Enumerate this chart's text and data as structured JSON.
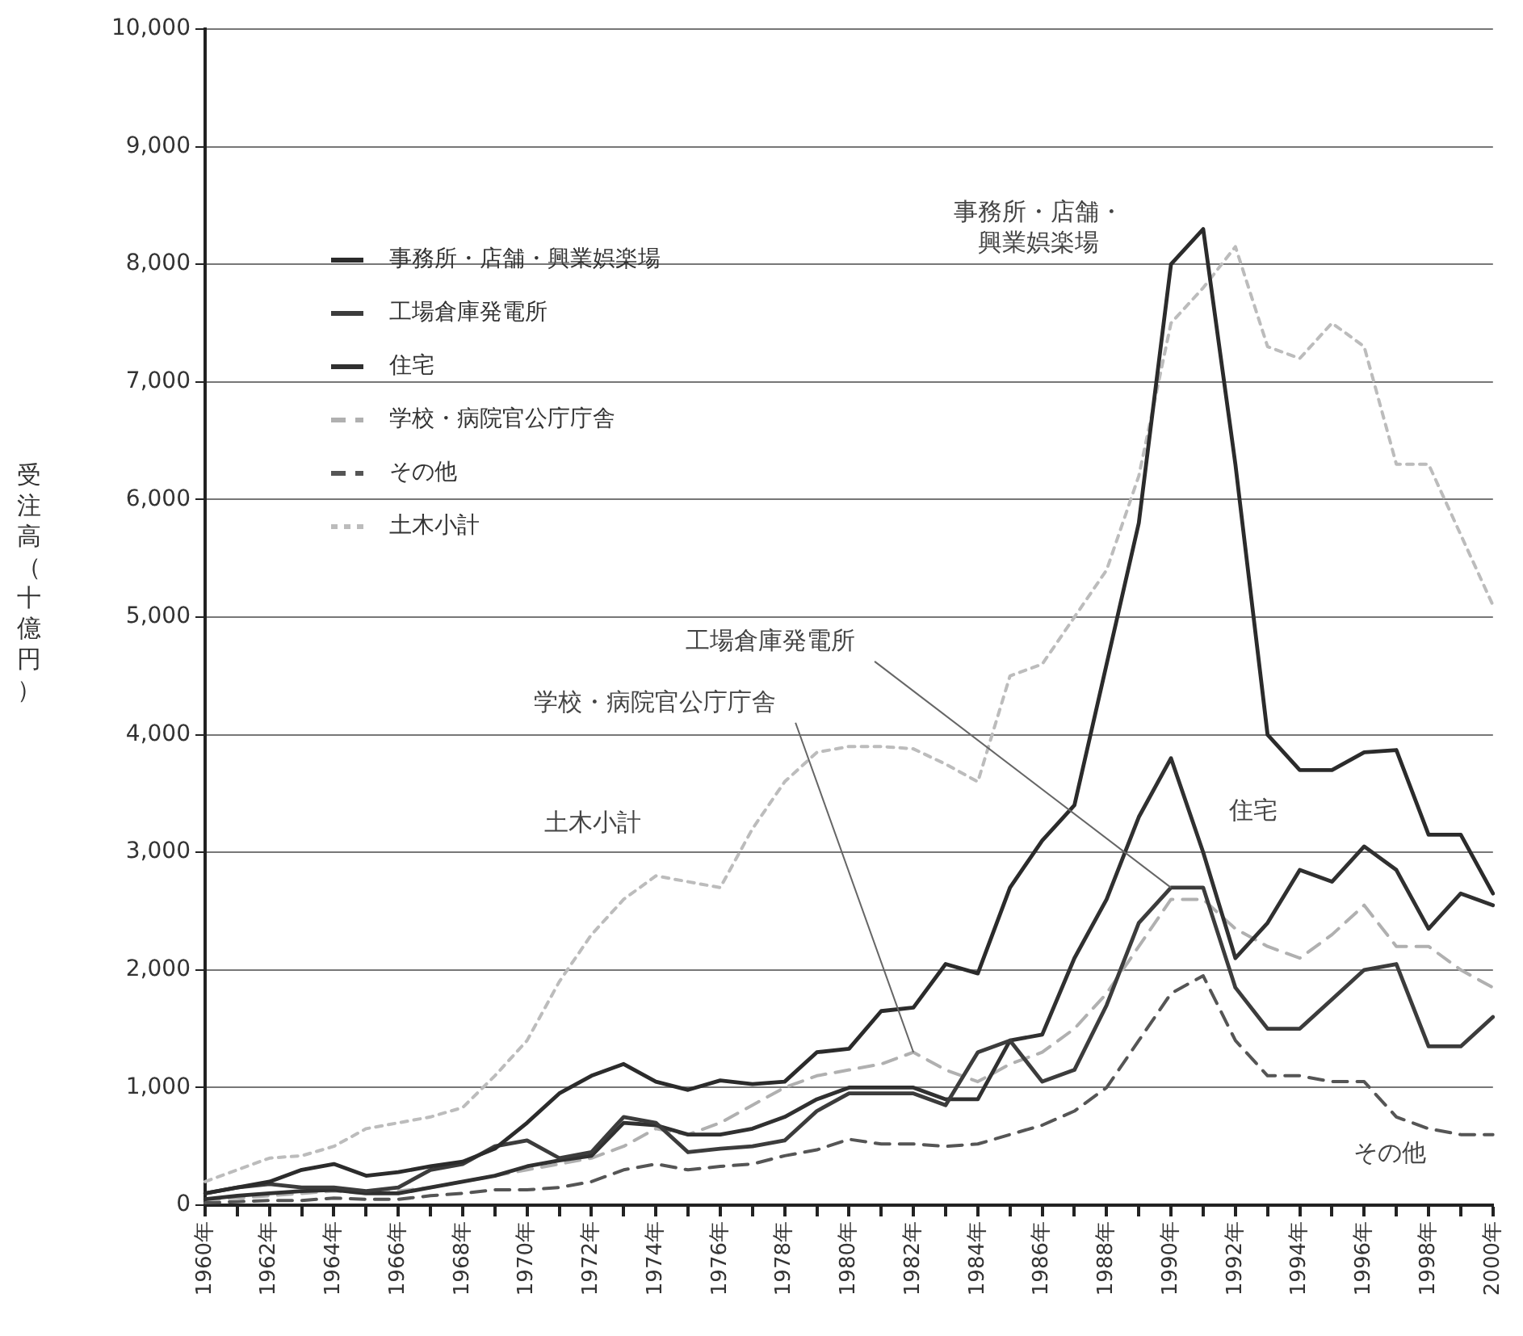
{
  "chart_data": {
    "type": "line",
    "ylabel": "受注高（十億円）",
    "categories": [
      "1960年",
      null,
      "1962年",
      null,
      "1964年",
      null,
      "1966年",
      null,
      "1968年",
      null,
      "1970年",
      null,
      "1972年",
      null,
      "1974年",
      null,
      "1976年",
      null,
      "1978年",
      null,
      "1980年",
      null,
      "1982年",
      null,
      "1984年",
      null,
      "1986年",
      null,
      "1988年",
      null,
      "1990年",
      null,
      "1992年",
      null,
      "1994年",
      null,
      "1996年",
      null,
      "1998年",
      null,
      "2000年"
    ],
    "ylim": [
      0,
      10000
    ],
    "yticks": [
      0,
      {
        "value": 1000,
        "label": "1,000"
      },
      {
        "value": 2000,
        "label": "2,000"
      },
      {
        "value": 3000,
        "label": "3,000"
      },
      {
        "value": 4000,
        "label": "4,000"
      },
      {
        "value": 5000,
        "label": "5,000"
      },
      {
        "value": 6000,
        "label": "6,000"
      },
      {
        "value": 7000,
        "label": "7,000"
      },
      {
        "value": 8000,
        "label": "8,000"
      },
      {
        "value": 9000,
        "label": "9,000"
      },
      {
        "value": 10000,
        "label": "10,000"
      }
    ],
    "grid": "y",
    "legend": "top left",
    "marker": "none",
    "series": [
      {
        "name": "事務所・店舗・興業娯楽場",
        "color": "#2b2b2b",
        "line_style": "solid",
        "values": [
          100,
          150,
          200,
          300,
          350,
          250,
          280,
          330,
          370,
          480,
          700,
          950,
          1100,
          1200,
          1050,
          980,
          1060,
          1030,
          1050,
          1300,
          1330,
          1650,
          1680,
          2050,
          1970,
          2700,
          3100,
          3400,
          4600,
          5800,
          8000,
          8300,
          6300,
          4000,
          3700,
          3700,
          3850,
          3870,
          3150,
          3150,
          2650
        ]
      },
      {
        "name": "工場倉庫発電所",
        "color": "#3c3c3c",
        "line_style": "solid",
        "values": [
          100,
          150,
          180,
          150,
          150,
          120,
          150,
          300,
          350,
          500,
          550,
          400,
          450,
          750,
          700,
          450,
          480,
          500,
          550,
          800,
          950,
          950,
          950,
          850,
          1300,
          1400,
          1050,
          1150,
          1700,
          2400,
          2700,
          2700,
          1850,
          1500,
          1500,
          1750,
          2000,
          2050,
          1350,
          1350,
          1600
        ]
      },
      {
        "name": "住宅",
        "color": "#303030",
        "line_style": "solid",
        "values": [
          50,
          80,
          100,
          120,
          130,
          100,
          100,
          150,
          200,
          250,
          330,
          380,
          420,
          700,
          680,
          600,
          600,
          650,
          750,
          900,
          1000,
          1000,
          1000,
          900,
          900,
          1400,
          1450,
          2100,
          2600,
          3300,
          3800,
          3000,
          2100,
          2400,
          2850,
          2750,
          3050,
          2850,
          2350,
          2650,
          2550
        ]
      },
      {
        "name": "学校・病院官公庁庁舎",
        "color": "#b0b0b0",
        "line_style": "dashed",
        "values": [
          50,
          60,
          80,
          100,
          120,
          100,
          120,
          150,
          200,
          250,
          300,
          350,
          400,
          500,
          650,
          600,
          700,
          850,
          1000,
          1100,
          1150,
          1200,
          1300,
          1150,
          1050,
          1200,
          1300,
          1500,
          1800,
          2200,
          2600,
          2600,
          2350,
          2200,
          2100,
          2300,
          2550,
          2200,
          2200,
          2000,
          1850
        ]
      },
      {
        "name": "その他",
        "color": "#555555",
        "line_style": "dashed",
        "values": [
          20,
          30,
          40,
          40,
          60,
          50,
          50,
          80,
          100,
          130,
          130,
          150,
          200,
          300,
          350,
          300,
          330,
          350,
          420,
          470,
          560,
          520,
          520,
          500,
          520,
          600,
          680,
          800,
          1000,
          1400,
          1800,
          1950,
          1400,
          1100,
          1100,
          1050,
          1050,
          750,
          650,
          600,
          600
        ]
      },
      {
        "name": "土木小計",
        "color": "#bcbcbc",
        "line_style": "dotted",
        "values": [
          200,
          300,
          400,
          420,
          500,
          650,
          700,
          750,
          830,
          1100,
          1400,
          1900,
          2300,
          2600,
          2800,
          2750,
          2700,
          3200,
          3600,
          3850,
          3900,
          3900,
          3880,
          3750,
          3600,
          4500,
          4600,
          5000,
          5400,
          6200,
          7500,
          7800,
          8150,
          7300,
          7200,
          7500,
          7300,
          6300,
          6300,
          5700,
          5100
        ]
      }
    ],
    "annotations": [
      {
        "text": "事務所・店舗・興業娯楽場",
        "x": "1990年",
        "y": 8000
      },
      {
        "text": "工場倉庫発電所",
        "x": "1990年",
        "y": 2700
      },
      {
        "text": "学校・病院官公庁庁舎",
        "x": "1982年",
        "y": 1300
      },
      {
        "text": "住宅",
        "x": "1990年",
        "y": 3800
      },
      {
        "text": "土木小計",
        "x": "1974年",
        "y": 2800
      },
      {
        "text": "その他",
        "x": "1998年",
        "y": 650
      }
    ]
  }
}
